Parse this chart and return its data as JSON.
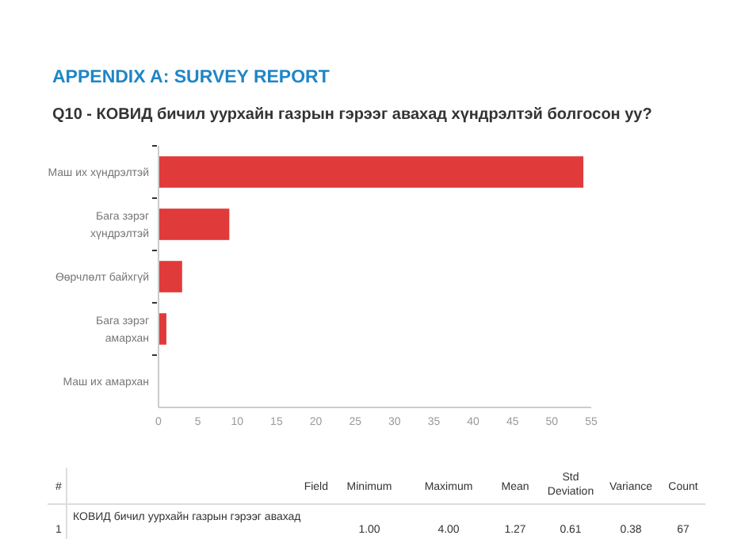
{
  "chart_data": {
    "type": "bar",
    "orientation": "horizontal",
    "title": "APPENDIX A: SURVEY REPORT",
    "subtitle": "Q10 - КОВИД бичил уурхайн газрын гэрээг авахад хүндрэлтэй болгосон уу?",
    "categories": [
      "Маш их хүндрэлтэй",
      "Бага зэрэг хүндрэлтэй",
      "Өөрчлөлт байхгүй",
      "Бага зэрэг амархан",
      "Маш их амархан"
    ],
    "values": [
      54,
      9,
      3,
      1,
      0
    ],
    "color": "#e03a3a",
    "xlim": [
      0,
      55
    ],
    "xticks": [
      0,
      5,
      10,
      15,
      20,
      25,
      30,
      35,
      40,
      45,
      50,
      55
    ],
    "grid": false,
    "annotations": [
      "#",
      "Field",
      "Minimum",
      "Maximum",
      "Mean",
      "Std Deviation",
      "Variance",
      "Count",
      "1",
      "КОВИД бичил уурхайн газрын гэрээг авахад",
      "1.00",
      "4.00",
      "1.27",
      "0.61",
      "0.38",
      "67"
    ]
  }
}
